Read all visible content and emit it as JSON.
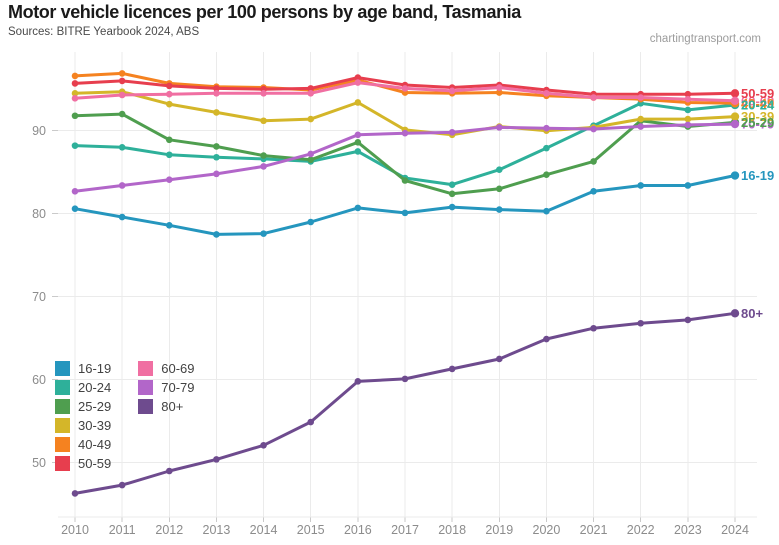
{
  "title": "Motor vehicle licences per 100 persons by age band, Tasmania",
  "subtitle": "Sources: BITRE Yearbook 2024, ABS",
  "watermark": "chartingtransport.com",
  "colors": {
    "grid": "#ebebeb",
    "tick": "#cacaca",
    "axis_label": "#8c8c8c"
  },
  "legend": {
    "columns": [
      [
        "16-19",
        "20-24",
        "25-29",
        "30-39",
        "40-49",
        "50-59"
      ],
      [
        "60-69",
        "70-79",
        "80+"
      ]
    ]
  },
  "chart_data": {
    "type": "line",
    "title": "Motor vehicle licences per 100 persons by age band, Tasmania",
    "xlabel": "",
    "ylabel": "",
    "x": [
      2010,
      2011,
      2012,
      2013,
      2014,
      2015,
      2016,
      2017,
      2018,
      2019,
      2020,
      2021,
      2022,
      2023,
      2024
    ],
    "yticks": [
      50,
      60,
      70,
      80,
      90
    ],
    "ylim": [
      43.5,
      99
    ],
    "grid": true,
    "legend_position": "inside-middle-left",
    "end_labels": true,
    "series": [
      {
        "name": "16-19",
        "color": "#2596be",
        "values": [
          80.6,
          79.6,
          78.6,
          77.5,
          77.6,
          79.0,
          80.7,
          80.1,
          80.8,
          80.5,
          80.3,
          82.7,
          83.4,
          83.4,
          84.6
        ]
      },
      {
        "name": "20-24",
        "color": "#2eb09a",
        "values": [
          88.2,
          88.0,
          87.1,
          86.8,
          86.6,
          86.3,
          87.5,
          84.3,
          83.5,
          85.3,
          87.9,
          90.6,
          93.3,
          92.5,
          93.1
        ]
      },
      {
        "name": "25-29",
        "color": "#4f9e4f",
        "values": [
          91.8,
          92.0,
          88.9,
          88.1,
          87.0,
          86.5,
          88.6,
          84.0,
          82.4,
          83.0,
          84.7,
          86.3,
          91.2,
          90.5,
          91.0
        ]
      },
      {
        "name": "30-39",
        "color": "#d4b629",
        "values": [
          94.5,
          94.7,
          93.2,
          92.2,
          91.2,
          91.4,
          93.4,
          90.1,
          89.5,
          90.5,
          90.0,
          90.4,
          91.4,
          91.4,
          91.7
        ]
      },
      {
        "name": "40-49",
        "color": "#f58220",
        "values": [
          96.6,
          96.9,
          95.7,
          95.3,
          95.2,
          94.9,
          96.1,
          94.6,
          94.5,
          94.6,
          94.2,
          94.0,
          93.8,
          93.4,
          93.3
        ]
      },
      {
        "name": "50-59",
        "color": "#e73e4e",
        "values": [
          95.7,
          96.0,
          95.4,
          95.1,
          95.0,
          95.1,
          96.4,
          95.5,
          95.2,
          95.5,
          94.9,
          94.4,
          94.4,
          94.4,
          94.5
        ]
      },
      {
        "name": "60-69",
        "color": "#f06fa2",
        "values": [
          93.9,
          94.3,
          94.4,
          94.5,
          94.5,
          94.5,
          95.8,
          95.1,
          94.8,
          95.2,
          94.5,
          94.0,
          94.0,
          93.8,
          93.6
        ]
      },
      {
        "name": "70-79",
        "color": "#b266c9",
        "values": [
          82.7,
          83.4,
          84.1,
          84.8,
          85.7,
          87.2,
          89.5,
          89.7,
          89.8,
          90.4,
          90.3,
          90.2,
          90.5,
          90.7,
          90.8
        ]
      },
      {
        "name": "80+",
        "color": "#6e4b8e",
        "values": [
          46.3,
          47.3,
          49.0,
          50.4,
          52.1,
          54.9,
          59.8,
          60.1,
          61.3,
          62.5,
          64.9,
          66.2,
          66.8,
          67.2,
          68.0
        ]
      }
    ]
  }
}
